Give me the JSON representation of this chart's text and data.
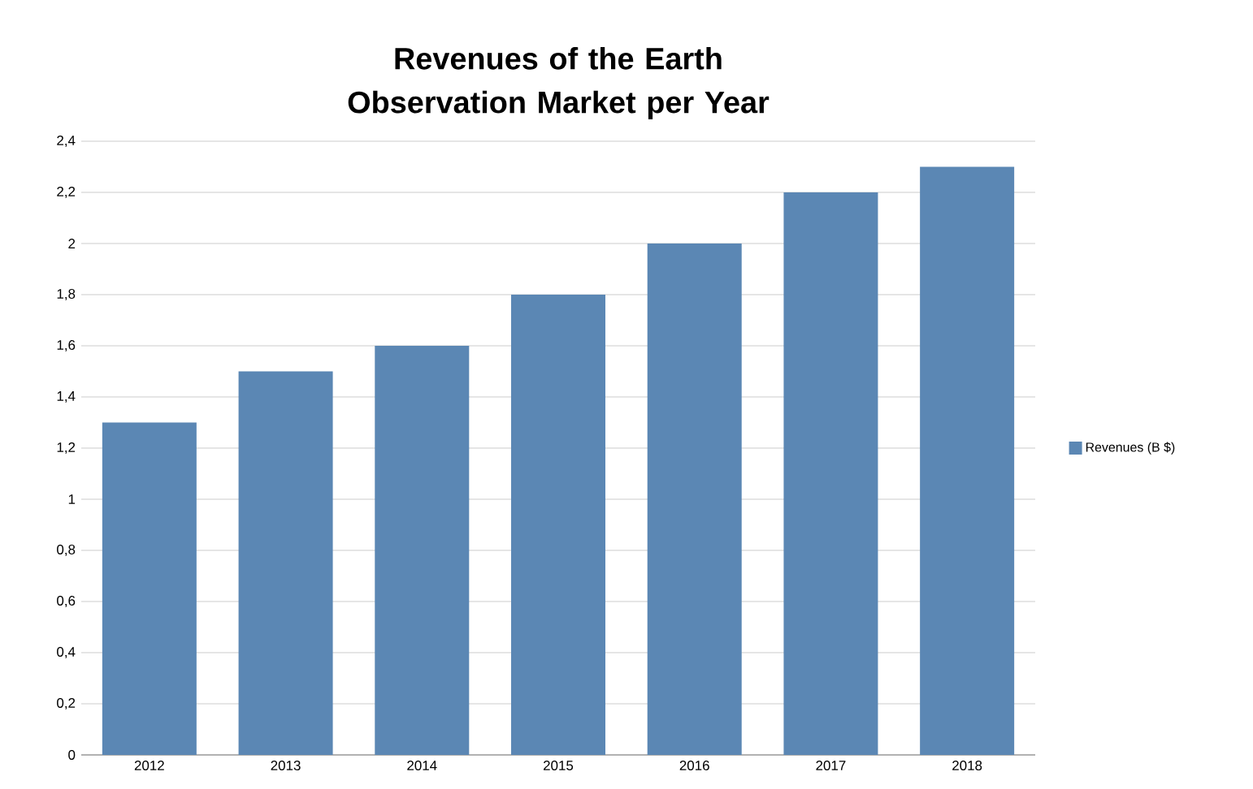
{
  "chart_data": {
    "type": "bar",
    "title": "Revenues of the Earth Observation Market per Year",
    "categories": [
      "2012",
      "2013",
      "2014",
      "2015",
      "2016",
      "2017",
      "2018"
    ],
    "series": [
      {
        "name": "Revenues (B $)",
        "color": "#5b87b4",
        "values": [
          1.3,
          1.5,
          1.6,
          1.8,
          2.0,
          2.2,
          2.3
        ]
      }
    ],
    "ylim": [
      0,
      2.4
    ],
    "yticks": [
      0,
      {
        "value": 0.2,
        "label": "0,2"
      },
      {
        "value": 0.4,
        "label": "0,4"
      },
      {
        "value": 0.6,
        "label": "0,6"
      },
      {
        "value": 0.8,
        "label": "0,8"
      },
      1,
      {
        "value": 1.2,
        "label": "1,2"
      },
      {
        "value": 1.4,
        "label": "1,4"
      },
      {
        "value": 1.6,
        "label": "1,6"
      },
      {
        "value": 1.8,
        "label": "1,8"
      },
      2,
      {
        "value": 2.2,
        "label": "2,2"
      },
      {
        "value": 2.4,
        "label": "2,4"
      }
    ],
    "grid": "y",
    "legend": "right"
  }
}
